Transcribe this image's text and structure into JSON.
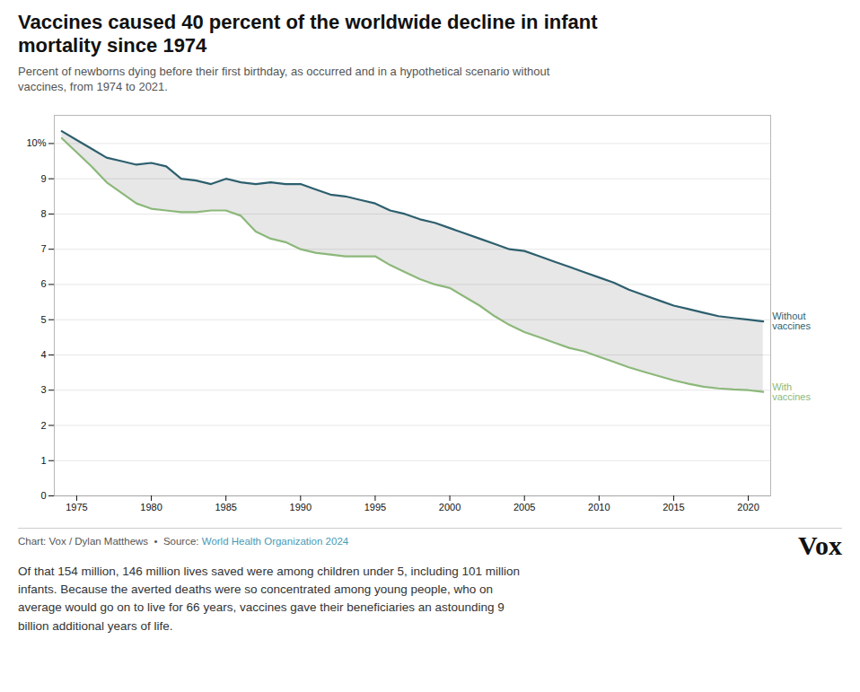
{
  "chart_data": {
    "type": "line",
    "title": "Vaccines caused 40 percent of the worldwide decline in infant\nmortality since 1974",
    "subtitle": "Percent of newborns dying before their first birthday, as occurred and in a hypothetical scenario without\nvaccines, from 1974 to 2021.",
    "x": [
      1974,
      1975,
      1976,
      1977,
      1978,
      1979,
      1980,
      1981,
      1982,
      1983,
      1984,
      1985,
      1986,
      1987,
      1988,
      1989,
      1990,
      1991,
      1992,
      1993,
      1994,
      1995,
      1996,
      1997,
      1998,
      1999,
      2000,
      2001,
      2002,
      2003,
      2004,
      2005,
      2006,
      2007,
      2008,
      2009,
      2010,
      2011,
      2012,
      2013,
      2014,
      2015,
      2016,
      2017,
      2018,
      2019,
      2020,
      2021
    ],
    "series": [
      {
        "name": "Without\nvaccines",
        "color": "#2d5f6e",
        "values": [
          10.35,
          10.1,
          9.85,
          9.6,
          9.5,
          9.4,
          9.45,
          9.35,
          9.0,
          8.95,
          8.85,
          9.0,
          8.9,
          8.85,
          8.9,
          8.85,
          8.85,
          8.7,
          8.55,
          8.5,
          8.4,
          8.3,
          8.1,
          8.0,
          7.85,
          7.75,
          7.6,
          7.45,
          7.3,
          7.15,
          7.0,
          6.95,
          6.8,
          6.65,
          6.5,
          6.35,
          6.2,
          6.05,
          5.85,
          5.7,
          5.55,
          5.4,
          5.3,
          5.2,
          5.1,
          5.05,
          5.0,
          4.95
        ]
      },
      {
        "name": "With\nvaccines",
        "color": "#8cb87a",
        "values": [
          10.15,
          9.75,
          9.35,
          8.9,
          8.6,
          8.3,
          8.15,
          8.1,
          8.05,
          8.05,
          8.1,
          8.1,
          7.95,
          7.5,
          7.3,
          7.2,
          7.0,
          6.9,
          6.85,
          6.8,
          6.8,
          6.8,
          6.55,
          6.35,
          6.15,
          6.0,
          5.9,
          5.65,
          5.4,
          5.1,
          4.85,
          4.65,
          4.5,
          4.35,
          4.2,
          4.1,
          3.95,
          3.8,
          3.65,
          3.52,
          3.4,
          3.28,
          3.18,
          3.1,
          3.05,
          3.02,
          3.0,
          2.95
        ]
      }
    ],
    "xlim": [
      1973.5,
      2021.5
    ],
    "xticks": [
      1975,
      1980,
      1985,
      1990,
      1995,
      2000,
      2005,
      2010,
      2015,
      2020
    ],
    "ylim": [
      0,
      10.8
    ],
    "yticks": [
      0,
      1,
      2,
      3,
      4,
      5,
      6,
      7,
      8,
      9,
      {
        "value": 10,
        "label": "10%"
      }
    ],
    "grid": true,
    "annotations": [
      "Chart: Vox / Dylan Matthews  •  Source: ",
      "World Health Organization 2024",
      "Vox",
      "Of that 154 million, 146 million lives saved were among children under 5, including 101 million\ninfants. Because the averted deaths were so concentrated among young people, who on\naverage would go on to live for 66 years, vaccines gave their beneficiaries an astounding 9\nbillion additional years of life."
    ]
  }
}
